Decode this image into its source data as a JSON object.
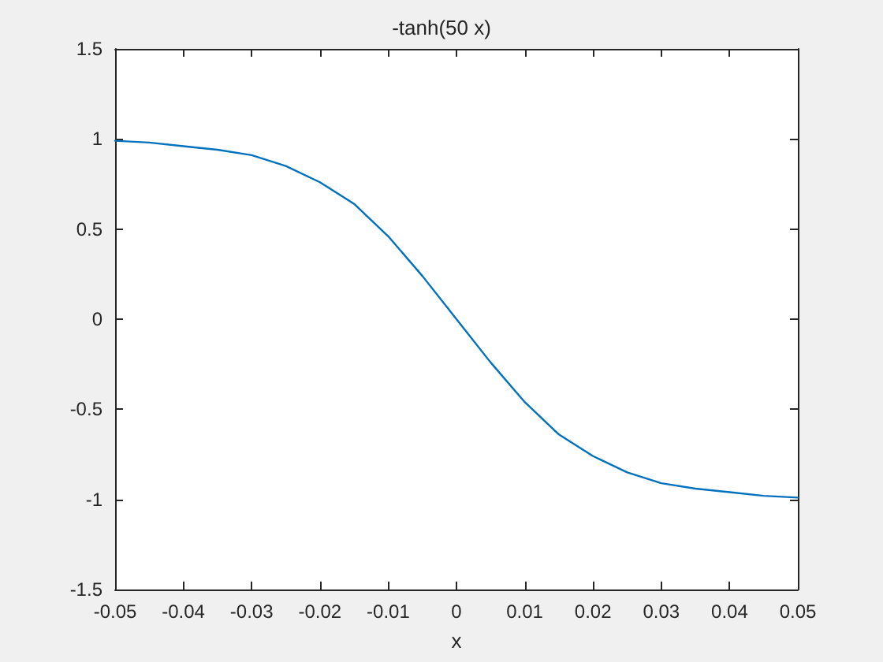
{
  "chart_data": {
    "type": "line",
    "title": "-tanh(50 x)",
    "xlabel": "x",
    "x": [
      -0.05,
      -0.045,
      -0.04,
      -0.035,
      -0.03,
      -0.025,
      -0.02,
      -0.015,
      -0.01,
      -0.005,
      0,
      0.005,
      0.01,
      0.015,
      0.02,
      0.025,
      0.03,
      0.035,
      0.04,
      0.045,
      0.05
    ],
    "series": [
      {
        "color": "#0072bd",
        "values": [
          0.99,
          0.98,
          0.96,
          0.94,
          0.91,
          0.85,
          0.76,
          0.64,
          0.46,
          0.24,
          0,
          -0.24,
          -0.46,
          -0.64,
          -0.76,
          -0.85,
          -0.91,
          -0.94,
          -0.96,
          -0.98,
          -0.99
        ]
      }
    ],
    "xlim": [
      -0.05,
      0.05
    ],
    "xticks": [
      -0.05,
      -0.04,
      -0.03,
      -0.02,
      -0.01,
      0,
      0.01,
      0.02,
      0.03,
      0.04,
      0.05
    ],
    "ylim": [
      -1.5,
      1.5
    ],
    "yticks": [
      -1.5,
      -1,
      -0.5,
      0,
      0.5,
      1,
      1.5
    ],
    "grid": false,
    "marker": "none",
    "line_style": "solid"
  }
}
